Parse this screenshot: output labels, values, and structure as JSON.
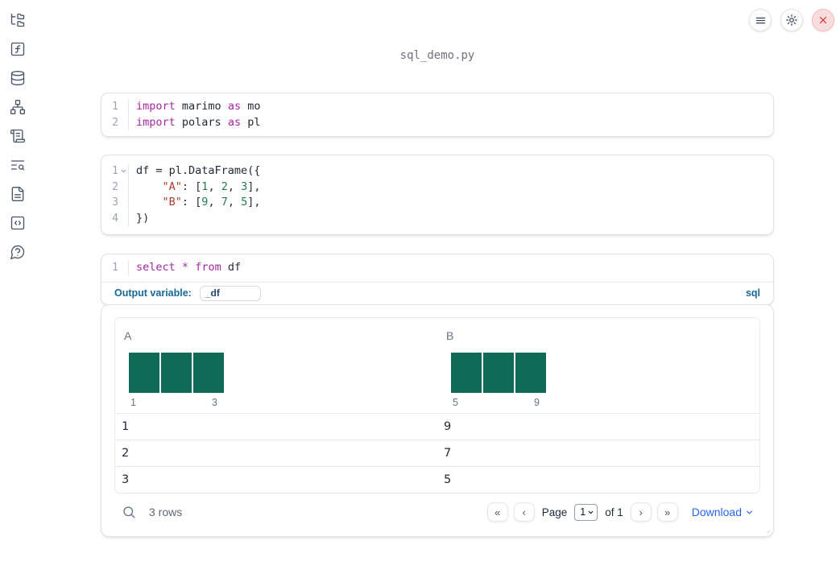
{
  "window": {
    "title": "sql_demo.py"
  },
  "topbar": {
    "buttons": [
      {
        "icon": "menu-icon"
      },
      {
        "icon": "gear-icon"
      },
      {
        "icon": "close-icon"
      }
    ]
  },
  "sidebar": {
    "items": [
      {
        "icon": "folder-tree-icon"
      },
      {
        "icon": "function-square-icon"
      },
      {
        "icon": "database-icon"
      },
      {
        "icon": "network-icon"
      },
      {
        "icon": "scroll-icon"
      },
      {
        "icon": "list-search-icon"
      },
      {
        "icon": "file-text-icon"
      },
      {
        "icon": "code-snippet-icon"
      },
      {
        "icon": "help-circle-icon"
      }
    ]
  },
  "cells": [
    {
      "kind": "python",
      "lines": [
        {
          "num": "1",
          "tokens": [
            {
              "t": "kw",
              "v": "import"
            },
            {
              "t": "pl",
              "v": " marimo "
            },
            {
              "t": "kw",
              "v": "as"
            },
            {
              "t": "pl",
              "v": " mo"
            }
          ]
        },
        {
          "num": "2",
          "tokens": [
            {
              "t": "kw",
              "v": "import"
            },
            {
              "t": "pl",
              "v": " polars "
            },
            {
              "t": "kw",
              "v": "as"
            },
            {
              "t": "pl",
              "v": " pl"
            }
          ]
        }
      ]
    },
    {
      "kind": "python",
      "lines": [
        {
          "num": "1",
          "fold": true,
          "tokens": [
            {
              "t": "pl",
              "v": "df = pl.DataFrame({"
            }
          ]
        },
        {
          "num": "2",
          "tokens": [
            {
              "t": "pl",
              "v": "    "
            },
            {
              "t": "str",
              "v": "\"A\""
            },
            {
              "t": "pl",
              "v": ": ["
            },
            {
              "t": "num",
              "v": "1"
            },
            {
              "t": "pl",
              "v": ", "
            },
            {
              "t": "num",
              "v": "2"
            },
            {
              "t": "pl",
              "v": ", "
            },
            {
              "t": "num",
              "v": "3"
            },
            {
              "t": "pl",
              "v": "],"
            }
          ]
        },
        {
          "num": "3",
          "tokens": [
            {
              "t": "pl",
              "v": "    "
            },
            {
              "t": "str",
              "v": "\"B\""
            },
            {
              "t": "pl",
              "v": ": ["
            },
            {
              "t": "num",
              "v": "9"
            },
            {
              "t": "pl",
              "v": ", "
            },
            {
              "t": "num",
              "v": "7"
            },
            {
              "t": "pl",
              "v": ", "
            },
            {
              "t": "num",
              "v": "5"
            },
            {
              "t": "pl",
              "v": "],"
            }
          ]
        },
        {
          "num": "4",
          "tokens": [
            {
              "t": "pl",
              "v": "})"
            }
          ]
        }
      ]
    },
    {
      "kind": "sql",
      "lines": [
        {
          "num": "1",
          "tokens": [
            {
              "t": "kw",
              "v": "select"
            },
            {
              "t": "pl",
              "v": " "
            },
            {
              "t": "op",
              "v": "*"
            },
            {
              "t": "pl",
              "v": " "
            },
            {
              "t": "kw",
              "v": "from"
            },
            {
              "t": "pl",
              "v": " df"
            }
          ]
        }
      ],
      "output_variable_label": "Output variable:",
      "output_variable_value": "_df",
      "language_badge": "sql"
    }
  ],
  "table_output": {
    "columns": [
      {
        "name": "A",
        "hist_counts": [
          1,
          1,
          1
        ],
        "hist_labels": [
          "1",
          "3"
        ]
      },
      {
        "name": "B",
        "hist_counts": [
          1,
          1,
          1
        ],
        "hist_labels": [
          "5",
          "9"
        ]
      }
    ],
    "rows": [
      [
        "1",
        "9"
      ],
      [
        "2",
        "7"
      ],
      [
        "3",
        "5"
      ]
    ],
    "footer": {
      "row_count": "3 rows",
      "page_label": "Page",
      "page_value": "1",
      "of_label": "of 1",
      "download_label": "Download",
      "pagination": {
        "first": "«",
        "prev": "‹",
        "next": "›",
        "last": "»"
      }
    }
  },
  "colors": {
    "accent_blue": "#176896",
    "link_blue": "#2563eb",
    "keyword_purple": "#a626a4",
    "string_red": "#a93c30",
    "number_green": "#227d4d",
    "histogram_green": "#0f6b55",
    "danger_red": "#dc2626"
  }
}
